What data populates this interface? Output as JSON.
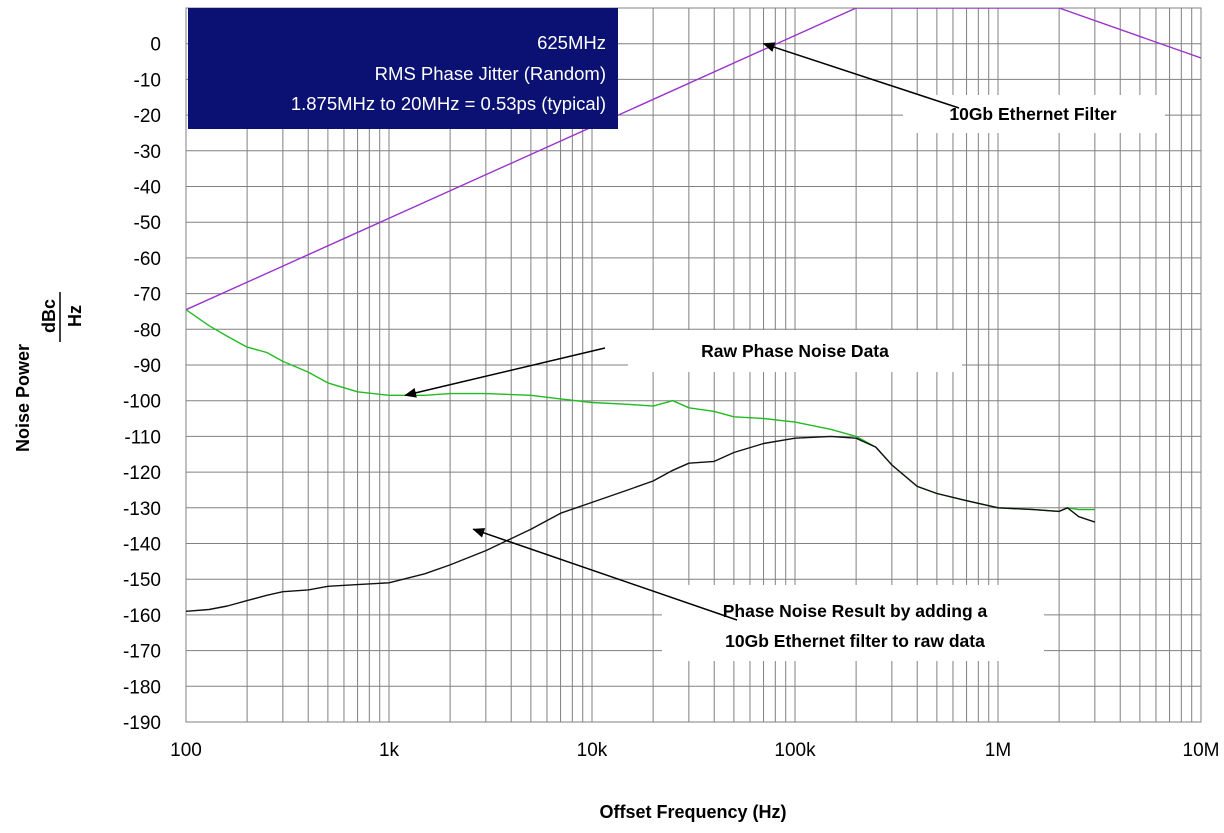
{
  "chart_data": {
    "type": "line",
    "title": "",
    "xlabel": "Offset Frequency (Hz)",
    "ylabel": "Noise Power",
    "ylabel_fraction": {
      "numerator": "dBc",
      "denominator": "Hz"
    },
    "x_scale": "log",
    "xlim": [
      100,
      10000000
    ],
    "ylim": [
      -190,
      10
    ],
    "x_ticks": [
      100,
      1000,
      10000,
      100000,
      1000000,
      10000000
    ],
    "x_tick_labels": [
      "100",
      "1k",
      "10k",
      "100k",
      "1M",
      "10M"
    ],
    "y_ticks": [
      0,
      -10,
      -20,
      -30,
      -40,
      -50,
      -60,
      -70,
      -80,
      -90,
      -100,
      -110,
      -120,
      -130,
      -140,
      -150,
      -160,
      -170,
      -180,
      -190
    ],
    "y_tick_labels": [
      "0",
      "-10",
      "-20",
      "-30",
      "-40",
      "-50",
      "-60",
      "-70",
      "-80",
      "-90",
      "-100",
      "-110",
      "-120",
      "-130",
      "-140",
      "-150",
      "-160",
      "-170",
      "-180",
      "-190"
    ],
    "grid": true,
    "info_box": {
      "lines": [
        "625MHz",
        "RMS Phase Jitter (Random)",
        "1.875MHz to 20MHz = 0.53ps (typical)"
      ],
      "background": "#0a1172",
      "text_color": "#ffffff"
    },
    "annotations": [
      {
        "text": "10Gb Ethernet Filter",
        "series": "filter",
        "point": [
          70000,
          0
        ]
      },
      {
        "text": "Raw Phase Noise Data",
        "series": "raw",
        "point": [
          1200,
          -98.5
        ]
      },
      {
        "lines": [
          "Phase Noise Result by adding a",
          "10Gb Ethernet filter to raw data"
        ],
        "series": "result",
        "point": [
          2600,
          -136
        ]
      }
    ],
    "series": [
      {
        "id": "filter",
        "color": "#9933cc",
        "x": [
          100,
          200000,
          2000000,
          10000000
        ],
        "y": [
          -74.5,
          10,
          10,
          -4
        ]
      },
      {
        "id": "raw",
        "color": "#22bb22",
        "x": [
          100,
          130,
          160,
          200,
          250,
          300,
          400,
          500,
          700,
          1000,
          1500,
          2000,
          3000,
          5000,
          7000,
          10000,
          15000,
          20000,
          25000,
          30000,
          40000,
          50000,
          70000,
          100000,
          150000,
          200000,
          250000,
          300000,
          400000,
          500000,
          700000,
          1000000,
          1500000,
          2000000,
          2200000,
          2500000,
          3000000
        ],
        "y": [
          -74.5,
          -79,
          -82,
          -85,
          -86.5,
          -89,
          -92,
          -95,
          -97.5,
          -98.5,
          -98.5,
          -98,
          -98,
          -98.5,
          -99.5,
          -100.5,
          -101,
          -101.5,
          -100,
          -102,
          -103,
          -104.5,
          -105,
          -106,
          -108,
          -110,
          -113,
          -118,
          -124,
          -126,
          -128,
          -130,
          -130.5,
          -131,
          -130,
          -130.5,
          -130.5
        ]
      },
      {
        "id": "result",
        "color": "#111111",
        "x": [
          100,
          130,
          160,
          200,
          250,
          300,
          400,
          500,
          700,
          1000,
          1500,
          2000,
          3000,
          5000,
          7000,
          10000,
          15000,
          20000,
          25000,
          30000,
          40000,
          50000,
          70000,
          100000,
          150000,
          200000,
          250000,
          300000,
          400000,
          500000,
          700000,
          1000000,
          1500000,
          2000000,
          2200000,
          2500000,
          3000000
        ],
        "y": [
          -159,
          -158.5,
          -157.5,
          -156,
          -154.5,
          -153.5,
          -153,
          -152,
          -151.5,
          -151,
          -148.5,
          -146,
          -142,
          -136,
          -131.5,
          -128.5,
          -125,
          -122.5,
          -119.5,
          -117.5,
          -117,
          -114.5,
          -112,
          -110.5,
          -110,
          -110.5,
          -113,
          -118,
          -124,
          -126,
          -128,
          -130,
          -130.5,
          -131,
          -130,
          -132.5,
          -134
        ]
      }
    ]
  }
}
